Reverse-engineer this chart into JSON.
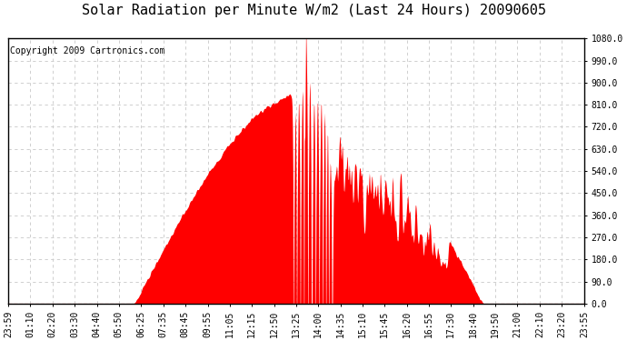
{
  "title": "Solar Radiation per Minute W/m2 (Last 24 Hours) 20090605",
  "copyright": "Copyright 2009 Cartronics.com",
  "bg_color": "#ffffff",
  "plot_bg_color": "#ffffff",
  "fill_color": "#ff0000",
  "dashed_line_color": "#ff0000",
  "grid_color": "#c8c8c8",
  "y_tick_labels": [
    "0.0",
    "90.0",
    "180.0",
    "270.0",
    "360.0",
    "450.0",
    "540.0",
    "630.0",
    "720.0",
    "810.0",
    "900.0",
    "990.0",
    "1080.0"
  ],
  "y_tick_values": [
    0,
    90,
    180,
    270,
    360,
    450,
    540,
    630,
    720,
    810,
    900,
    990,
    1080
  ],
  "ylim": [
    0,
    1080
  ],
  "x_tick_labels": [
    "23:59",
    "01:10",
    "02:20",
    "03:30",
    "04:40",
    "05:50",
    "06:25",
    "07:35",
    "08:45",
    "09:55",
    "11:05",
    "12:15",
    "12:50",
    "13:25",
    "14:00",
    "14:35",
    "15:10",
    "15:45",
    "16:20",
    "16:55",
    "17:30",
    "18:40",
    "19:50",
    "21:00",
    "22:10",
    "23:20",
    "23:55"
  ],
  "title_fontsize": 11,
  "copyright_fontsize": 7,
  "tick_fontsize": 7
}
